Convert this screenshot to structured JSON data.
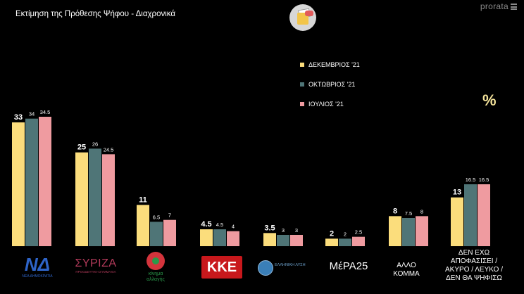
{
  "header": {
    "title": "Εκτίμηση της Πρόθεσης Ψήφου - Διαχρονικά",
    "brand": "prorata"
  },
  "unit_symbol": "%",
  "colors": {
    "dec": "#fbdd7c",
    "oct": "#4f7577",
    "jul": "#ef9ba0"
  },
  "party_icons": [
    "nd-logo",
    "syriza-logo",
    "kinal-logo",
    "kke-logo",
    "elliniki-lysi-logo",
    "mera25-logo"
  ],
  "party_logo_text": {
    "nd": "ΝΔ",
    "nd_sub": "ΝΕΑ ΔΗΜΟΚΡΑΤΙΑ",
    "syriza": "ΣΥΡΙΖΑ",
    "syriza_sub": "ΠΡΟΟΔΕΥΤΙΚΗ ΣΥΜΜΑΧΙΑ",
    "kinal": "κίνημα αλλαγής",
    "kke": "ΚΚΕ",
    "el": "ΕΛΛΗΝΙΚΗ ΛΥΣΗ",
    "mera": "ΜέΡΑ25"
  },
  "text_categories": {
    "allo": [
      "ΑΛΛΟ",
      "ΚΟΜΜΑ"
    ],
    "den": [
      "ΔΕΝ ΕΧΩ",
      "ΑΠΟΦΑΣΙΣΕΙ /",
      "ΑΚΥΡΟ / ΛΕΥΚΟ /",
      "ΔΕΝ ΘΑ ΨΗΦΙΣΩ"
    ]
  },
  "chart_data": {
    "type": "bar",
    "title": "Εκτίμηση της Πρόθεσης Ψήφου - Διαχρονικά",
    "categories": [
      "ΝΔ",
      "ΣΥΡΙΖΑ",
      "ΚΙΝΑΛ",
      "ΚΚΕ",
      "ΕΛΛΗΝΙΚΗ ΛΥΣΗ",
      "ΜέΡΑ25",
      "ΑΛΛΟ ΚΟΜΜΑ",
      "ΔΕΝ ΕΧΩ ΑΠΟΦΑΣΙΣΕΙ / ΑΚΥΡΟ / ΛΕΥΚΟ / ΔΕΝ ΘΑ ΨΗΦΙΣΩ"
    ],
    "series": [
      {
        "name": "ΔΕΚΕΜΒΡΙΟΣ '21",
        "values": [
          33,
          25,
          11,
          4.5,
          3.5,
          2,
          8,
          13
        ]
      },
      {
        "name": "ΟΚΤΩΒΡΙΟΣ '21",
        "values": [
          34,
          26,
          6.5,
          4.5,
          3,
          2,
          7.5,
          16.5
        ]
      },
      {
        "name": "ΙΟΥΛΙΟΣ '21",
        "values": [
          34.5,
          24.5,
          7,
          4,
          3,
          2.5,
          8,
          16.5
        ]
      }
    ],
    "ylim": [
      0,
      36
    ],
    "grid": false,
    "legend": "top-center",
    "unit": "%"
  }
}
